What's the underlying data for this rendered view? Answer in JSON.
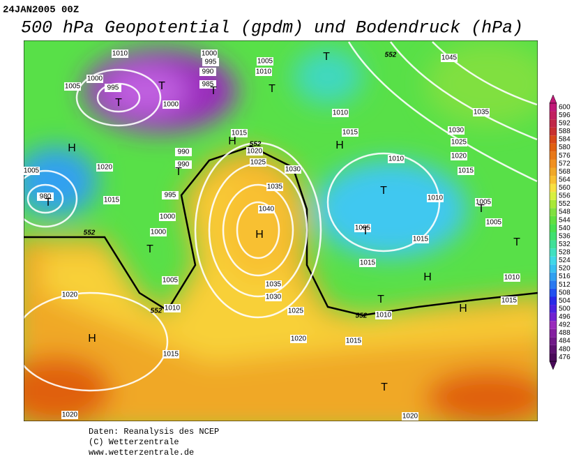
{
  "header": {
    "date": "24JAN2005 00Z",
    "title": "500 hPa Geopotential (gpdm) und Bodendruck (hPa)"
  },
  "colorbar": {
    "levels": [
      476,
      480,
      484,
      488,
      492,
      496,
      500,
      504,
      508,
      512,
      516,
      520,
      524,
      528,
      532,
      536,
      540,
      544,
      548,
      552,
      556,
      560,
      564,
      568,
      572,
      576,
      580,
      584,
      588,
      592,
      596,
      600
    ],
    "colors": [
      "#4a0a5a",
      "#5c1070",
      "#701888",
      "#8420a0",
      "#9a2cbc",
      "#7020d0",
      "#4a20e0",
      "#2828e8",
      "#2050f0",
      "#2878f0",
      "#30a0f0",
      "#38c0f0",
      "#40d8e8",
      "#40e0c0",
      "#40e098",
      "#40e070",
      "#48e050",
      "#60e040",
      "#80e040",
      "#a8e838",
      "#d8f040",
      "#f8e040",
      "#f8c030",
      "#f0a828",
      "#f09020",
      "#e87818",
      "#e06010",
      "#d84818",
      "#c83030",
      "#c02848",
      "#c02060",
      "#c01878"
    ]
  },
  "map": {
    "isobar_labels": [
      "1010",
      "1005",
      "1000",
      "995",
      "1000",
      "995",
      "990",
      "985",
      "1005",
      "1010",
      "1000",
      "990",
      "990",
      "1020",
      "1015",
      "995",
      "1000",
      "1000",
      "1005",
      "1010",
      "1015",
      "1020",
      "1020",
      "1015",
      "1020",
      "1025",
      "1030",
      "1035",
      "1040",
      "1035",
      "1030",
      "1025",
      "1020",
      "1015",
      "1010",
      "1010",
      "1015",
      "1010",
      "1010",
      "1015",
      "1015",
      "1005",
      "1005",
      "1005",
      "1010",
      "1015",
      "1020",
      "1015",
      "1025",
      "1030",
      "1035",
      "1045",
      "1020",
      "980",
      "1005"
    ],
    "contour_labels": [
      "552",
      "552",
      "552",
      "552",
      "552"
    ],
    "pressure_centers": [
      "T",
      "T",
      "T",
      "T",
      "T",
      "H",
      "H",
      "H",
      "T",
      "T",
      "T",
      "H",
      "T",
      "T",
      "T",
      "T",
      "H",
      "T",
      "H",
      "H",
      "T"
    ]
  },
  "footer": {
    "lines": [
      "Daten: Reanalysis des NCEP",
      "(C) Wetterzentrale",
      "www.wetterzentrale.de"
    ]
  }
}
